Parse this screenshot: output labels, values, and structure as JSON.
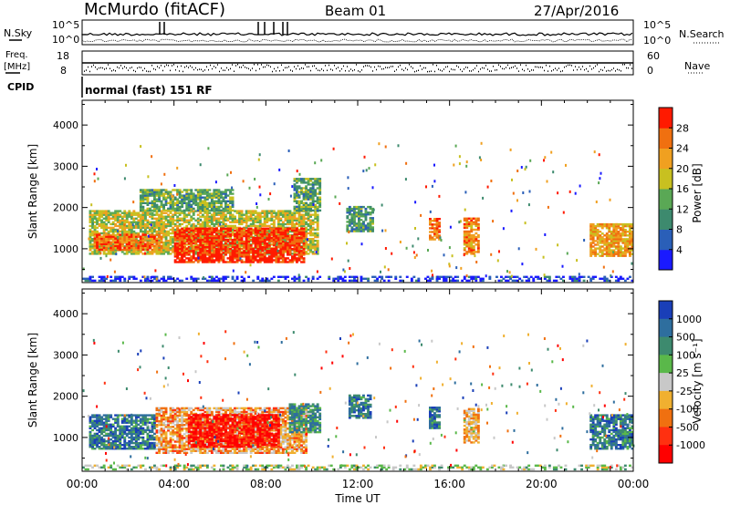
{
  "header": {
    "station": "McMurdo (fitACF)",
    "beam": "Beam 01",
    "date": "27/Apr/2016"
  },
  "noise_panel": {
    "left_label": "N.Sky",
    "right_label": "N.Search",
    "left_ticks": [
      "10^5",
      "10^0"
    ],
    "right_ticks": [
      "10^5",
      "10^0"
    ]
  },
  "freq_panel": {
    "left_label_1": "Freq.",
    "left_label_2": "[MHz]",
    "right_label": "Nave",
    "left_ticks": [
      "18",
      "8"
    ],
    "right_ticks": [
      "60",
      "0"
    ]
  },
  "cpid": {
    "label": "CPID",
    "text": "normal (fast) 151 RF"
  },
  "chart_data": [
    {
      "type": "heatmap",
      "quantity": "Power",
      "xlabel": "Time UT",
      "ylabel": "Slant Range [km]",
      "xlim": [
        0,
        24
      ],
      "ylim": [
        180,
        4600
      ],
      "x_ticks": [
        "00:00",
        "04:00",
        "08:00",
        "12:00",
        "16:00",
        "20:00",
        "00:00"
      ],
      "y_ticks": [
        1000,
        2000,
        3000,
        4000
      ],
      "colorbar": {
        "label": "Power [dB]",
        "range": [
          0,
          32
        ],
        "ticks": [
          4,
          8,
          12,
          16,
          20,
          24,
          28
        ],
        "colors": [
          "#1a1aff",
          "#2a5fb8",
          "#3d8a6e",
          "#5aa855",
          "#c8c020",
          "#f0a020",
          "#f07010",
          "#ff1a00"
        ]
      },
      "regions": [
        {
          "t0": 0.3,
          "t1": 10.2,
          "r0": 850,
          "r1": 1900,
          "level": 0.55
        },
        {
          "t0": 4.0,
          "t1": 9.6,
          "r0": 650,
          "r1": 1500,
          "level": 0.95
        },
        {
          "t0": 0.5,
          "t1": 3.5,
          "r0": 950,
          "r1": 1350,
          "level": 0.8
        },
        {
          "t0": 2.5,
          "t1": 6.5,
          "r0": 1900,
          "r1": 2400,
          "level": 0.4
        },
        {
          "t0": 9.2,
          "t1": 10.3,
          "r0": 1900,
          "r1": 2700,
          "level": 0.4
        },
        {
          "t0": 11.5,
          "t1": 12.6,
          "r0": 1400,
          "r1": 2000,
          "level": 0.35
        },
        {
          "t0": 15.1,
          "t1": 15.5,
          "r0": 1200,
          "r1": 1700,
          "level": 0.8
        },
        {
          "t0": 16.6,
          "t1": 17.3,
          "r0": 850,
          "r1": 1750,
          "level": 0.75
        },
        {
          "t0": 22.1,
          "t1": 24.0,
          "r0": 800,
          "r1": 1600,
          "level": 0.7
        },
        {
          "t0": 0.0,
          "t1": 24.0,
          "r0": 200,
          "r1": 330,
          "level": 0.1
        }
      ]
    },
    {
      "type": "heatmap",
      "quantity": "Velocity",
      "xlabel": "Time UT",
      "ylabel": "Slant Range [km]",
      "xlim": [
        0,
        24
      ],
      "ylim": [
        180,
        4600
      ],
      "x_ticks": [
        "00:00",
        "04:00",
        "08:00",
        "12:00",
        "16:00",
        "20:00",
        "00:00"
      ],
      "y_ticks": [
        1000,
        2000,
        3000,
        4000
      ],
      "colorbar": {
        "label": "Velocity [m s⁻¹]",
        "tick_labels": [
          "1000",
          "500",
          "100",
          "25",
          "-25",
          "-100",
          "-500",
          "-1000"
        ],
        "colors": [
          "#1a3fb8",
          "#2e6e9e",
          "#3d8a6e",
          "#5ab84a",
          "#c8c8c8",
          "#f0b030",
          "#f07010",
          "#ff3010",
          "#ff0000"
        ]
      },
      "regions": [
        {
          "t0": 0.3,
          "t1": 3.2,
          "r0": 700,
          "r1": 1550,
          "level": 0.2
        },
        {
          "t0": 3.2,
          "t1": 9.7,
          "r0": 600,
          "r1": 1700,
          "level": 0.65
        },
        {
          "t0": 4.6,
          "t1": 8.5,
          "r0": 750,
          "r1": 1550,
          "level": 0.92
        },
        {
          "t0": 9.0,
          "t1": 10.3,
          "r0": 1100,
          "r1": 1800,
          "level": 0.3
        },
        {
          "t0": 11.6,
          "t1": 12.5,
          "r0": 1450,
          "r1": 2000,
          "level": 0.2
        },
        {
          "t0": 15.1,
          "t1": 15.5,
          "r0": 1200,
          "r1": 1700,
          "level": 0.2
        },
        {
          "t0": 16.6,
          "t1": 17.3,
          "r0": 850,
          "r1": 1700,
          "level": 0.6
        },
        {
          "t0": 22.1,
          "t1": 24.0,
          "r0": 700,
          "r1": 1550,
          "level": 0.2
        },
        {
          "t0": 0.0,
          "t1": 24.0,
          "r0": 200,
          "r1": 330,
          "level": 0.45
        }
      ]
    }
  ]
}
